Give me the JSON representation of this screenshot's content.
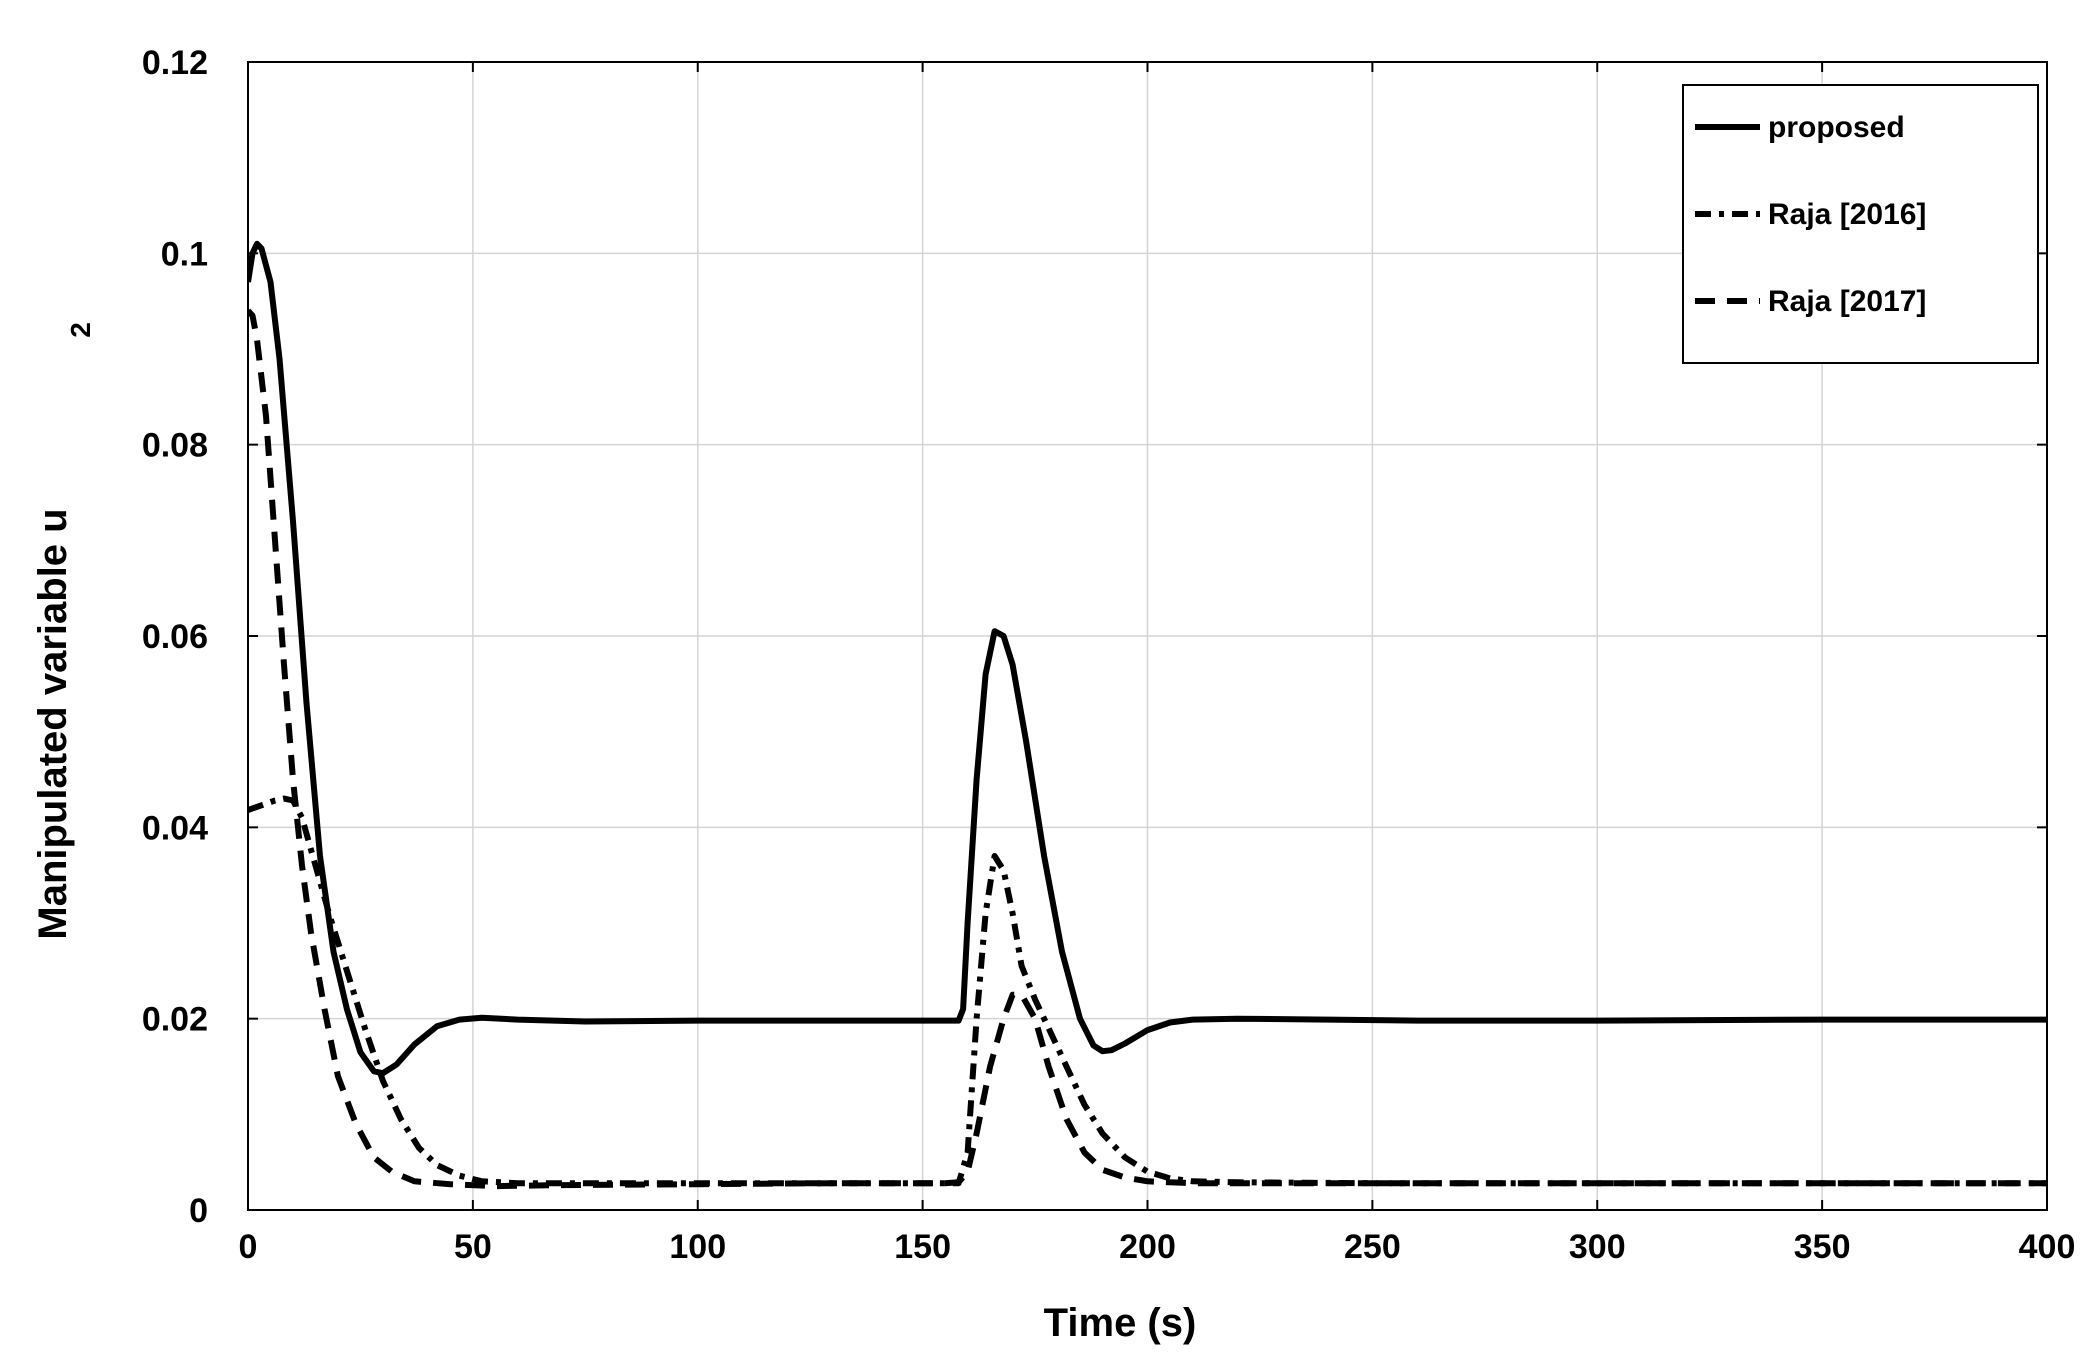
{
  "chart_data": {
    "type": "line",
    "title": "",
    "xlabel": "Time (s)",
    "ylabel": "Manipulated variable u",
    "ylabel_subscript": "2",
    "xlim": [
      0,
      400
    ],
    "ylim": [
      0,
      0.12
    ],
    "x_ticks": [
      "0",
      "50",
      "100",
      "150",
      "200",
      "250",
      "300",
      "350",
      "400"
    ],
    "y_ticks": [
      "0",
      "0.02",
      "0.04",
      "0.06",
      "0.08",
      "0.1",
      "0.12"
    ],
    "grid": true,
    "legend_position": "top-right",
    "series": [
      {
        "name": "proposed",
        "style": "solid",
        "color": "#000000",
        "points": [
          [
            0,
            0.097
          ],
          [
            1,
            0.1
          ],
          [
            2,
            0.101
          ],
          [
            3,
            0.1005
          ],
          [
            5,
            0.097
          ],
          [
            7,
            0.089
          ],
          [
            10,
            0.072
          ],
          [
            13,
            0.053
          ],
          [
            16,
            0.037
          ],
          [
            19,
            0.027
          ],
          [
            22,
            0.021
          ],
          [
            25,
            0.0165
          ],
          [
            28,
            0.0145
          ],
          [
            30,
            0.0143
          ],
          [
            33,
            0.0152
          ],
          [
            37,
            0.0173
          ],
          [
            42,
            0.0192
          ],
          [
            47,
            0.0199
          ],
          [
            52,
            0.0201
          ],
          [
            60,
            0.0199
          ],
          [
            75,
            0.0197
          ],
          [
            100,
            0.0198
          ],
          [
            130,
            0.0198
          ],
          [
            155,
            0.0198
          ],
          [
            158,
            0.0198
          ],
          [
            159,
            0.021
          ],
          [
            160,
            0.03
          ],
          [
            162,
            0.045
          ],
          [
            164,
            0.056
          ],
          [
            166,
            0.0605
          ],
          [
            168,
            0.06
          ],
          [
            170,
            0.057
          ],
          [
            173,
            0.049
          ],
          [
            177,
            0.037
          ],
          [
            181,
            0.027
          ],
          [
            185,
            0.02
          ],
          [
            188,
            0.0172
          ],
          [
            190,
            0.0166
          ],
          [
            192,
            0.0167
          ],
          [
            195,
            0.0174
          ],
          [
            200,
            0.0188
          ],
          [
            205,
            0.0196
          ],
          [
            210,
            0.0199
          ],
          [
            220,
            0.02
          ],
          [
            260,
            0.0198
          ],
          [
            300,
            0.0198
          ],
          [
            350,
            0.0199
          ],
          [
            400,
            0.0199
          ]
        ]
      },
      {
        "name": "Raja [2016]",
        "style": "dashdot",
        "color": "#000000",
        "points": [
          [
            0,
            0.0418
          ],
          [
            3,
            0.0423
          ],
          [
            6,
            0.0428
          ],
          [
            8,
            0.043
          ],
          [
            10,
            0.0428
          ],
          [
            12,
            0.041
          ],
          [
            15,
            0.036
          ],
          [
            18,
            0.031
          ],
          [
            22,
            0.025
          ],
          [
            26,
            0.019
          ],
          [
            30,
            0.0135
          ],
          [
            34,
            0.0095
          ],
          [
            38,
            0.0065
          ],
          [
            42,
            0.0047
          ],
          [
            47,
            0.0036
          ],
          [
            52,
            0.003
          ],
          [
            60,
            0.0028
          ],
          [
            80,
            0.0028
          ],
          [
            120,
            0.0028
          ],
          [
            155,
            0.0028
          ],
          [
            158,
            0.0028
          ],
          [
            160,
            0.006
          ],
          [
            162,
            0.02
          ],
          [
            164,
            0.031
          ],
          [
            166,
            0.037
          ],
          [
            168,
            0.0355
          ],
          [
            170,
            0.031
          ],
          [
            172,
            0.0255
          ],
          [
            175,
            0.022
          ],
          [
            178,
            0.019
          ],
          [
            182,
            0.015
          ],
          [
            186,
            0.011
          ],
          [
            190,
            0.008
          ],
          [
            195,
            0.0055
          ],
          [
            200,
            0.004
          ],
          [
            205,
            0.0033
          ],
          [
            210,
            0.003
          ],
          [
            220,
            0.0029
          ],
          [
            250,
            0.0028
          ],
          [
            300,
            0.0028
          ],
          [
            350,
            0.0028
          ],
          [
            400,
            0.0028
          ]
        ]
      },
      {
        "name": "Raja [2017]",
        "style": "dashed",
        "color": "#000000",
        "points": [
          [
            0,
            0.094
          ],
          [
            1,
            0.0935
          ],
          [
            2,
            0.091
          ],
          [
            4,
            0.083
          ],
          [
            6,
            0.07
          ],
          [
            8,
            0.057
          ],
          [
            10,
            0.045
          ],
          [
            12,
            0.036
          ],
          [
            14,
            0.029
          ],
          [
            17,
            0.021
          ],
          [
            20,
            0.014
          ],
          [
            24,
            0.009
          ],
          [
            28,
            0.0055
          ],
          [
            32,
            0.004
          ],
          [
            37,
            0.003
          ],
          [
            45,
            0.0027
          ],
          [
            55,
            0.0025
          ],
          [
            70,
            0.0026
          ],
          [
            100,
            0.0027
          ],
          [
            130,
            0.0028
          ],
          [
            155,
            0.0028
          ],
          [
            158,
            0.0029
          ],
          [
            160,
            0.004
          ],
          [
            162,
            0.008
          ],
          [
            165,
            0.015
          ],
          [
            168,
            0.02
          ],
          [
            170,
            0.0225
          ],
          [
            172,
            0.0225
          ],
          [
            175,
            0.02
          ],
          [
            178,
            0.015
          ],
          [
            182,
            0.0095
          ],
          [
            186,
            0.006
          ],
          [
            190,
            0.0042
          ],
          [
            195,
            0.0034
          ],
          [
            200,
            0.003
          ],
          [
            210,
            0.0028
          ],
          [
            250,
            0.0028
          ],
          [
            300,
            0.0028
          ],
          [
            350,
            0.0028
          ],
          [
            400,
            0.0028
          ]
        ]
      }
    ]
  }
}
